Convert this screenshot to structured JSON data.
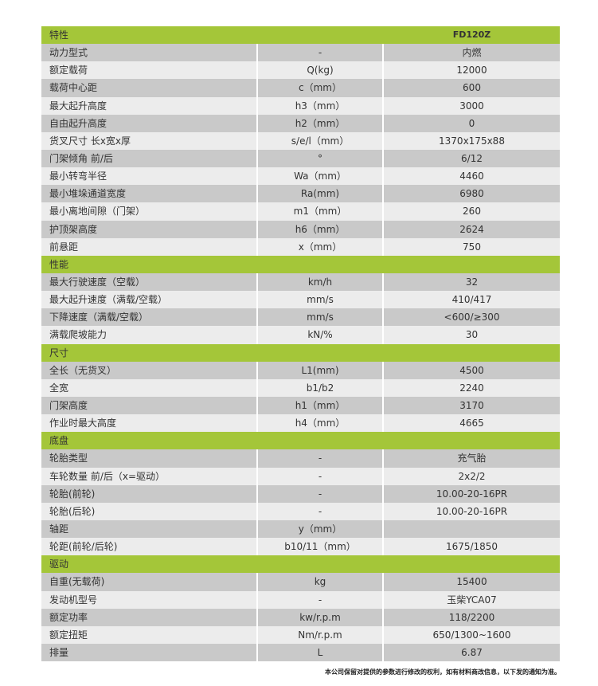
{
  "header": {
    "label": "特性",
    "model": "FD120Z"
  },
  "rows": [
    {
      "a": "动力型式",
      "b": "-",
      "c": "内燃"
    },
    {
      "a": "额定载荷",
      "b": "Q(kg)",
      "c": "12000"
    },
    {
      "a": "载荷中心距",
      "b": "c（mm）",
      "c": "600"
    },
    {
      "a": "最大起升高度",
      "b": "h3（mm）",
      "c": "3000"
    },
    {
      "a": "自由起升高度",
      "b": "h2（mm）",
      "c": "0"
    },
    {
      "a": "货叉尺寸 长x宽x厚",
      "b": "s/e/l（mm）",
      "c": "1370x175x88"
    },
    {
      "a": "门架倾角 前/后",
      "b": "°",
      "c": "6/12"
    },
    {
      "a": "最小转弯半径",
      "b": "Wa（mm）",
      "c": "4460"
    },
    {
      "a": "最小堆垛通道宽度",
      "b": "Ra(mm)",
      "c": "6980"
    },
    {
      "a": "最小离地间隙（门架）",
      "b": "m1（mm）",
      "c": "260"
    },
    {
      "a": "护顶架高度",
      "b": "h6（mm）",
      "c": "2624"
    },
    {
      "a": "前悬距",
      "b": "x（mm）",
      "c": "750"
    },
    {
      "sec": "性能"
    },
    {
      "a": "最大行驶速度（空载）",
      "b": "km/h",
      "c": "32"
    },
    {
      "a": "最大起升速度（满载/空载）",
      "b": "mm/s",
      "c": "410/417"
    },
    {
      "a": "下降速度（满载/空载）",
      "b": "mm/s",
      "c": "<600/≥300"
    },
    {
      "a": "满载爬坡能力",
      "b": "kN/%",
      "c": "30"
    },
    {
      "sec": "尺寸"
    },
    {
      "a": "全长（无货叉）",
      "b": "L1(mm)",
      "c": "4500"
    },
    {
      "a": "全宽",
      "b": "b1/b2",
      "c": "2240"
    },
    {
      "a": "门架高度",
      "b": "h1（mm）",
      "c": "3170"
    },
    {
      "a": "作业时最大高度",
      "b": "h4（mm）",
      "c": "4665"
    },
    {
      "sec": "底盘"
    },
    {
      "a": "轮胎类型",
      "b": "-",
      "c": "充气胎"
    },
    {
      "a": "车轮数量 前/后（x=驱动）",
      "b": "-",
      "c": "2x2/2"
    },
    {
      "a": "轮胎(前轮)",
      "b": "-",
      "c": "10.00-20-16PR"
    },
    {
      "a": "轮胎(后轮)",
      "b": "-",
      "c": "10.00-20-16PR"
    },
    {
      "a": "轴距",
      "b": "y（mm）",
      "c": ""
    },
    {
      "a": "轮距(前轮/后轮)",
      "b": "b10/11（mm）",
      "c": "1675/1850"
    },
    {
      "sec": "驱动"
    },
    {
      "a": "自重(无载荷)",
      "b": "kg",
      "c": "15400"
    },
    {
      "a": "发动机型号",
      "b": "-",
      "c": "玉柴YCA07"
    },
    {
      "a": "额定功率",
      "b": "kw/r.p.m",
      "c": "118/2200"
    },
    {
      "a": "额定扭矩",
      "b": "Nm/r.p.m",
      "c": "650/1300~1600"
    },
    {
      "a": "排量",
      "b": "L",
      "c": "6.87"
    }
  ],
  "note": "本公司保留对提供的参数进行修改的权利，如有材料商改信息，以下发的通知为准。",
  "colors": {
    "section": "#a4c639",
    "dark": "#c9c9c9",
    "light": "#ececec"
  }
}
